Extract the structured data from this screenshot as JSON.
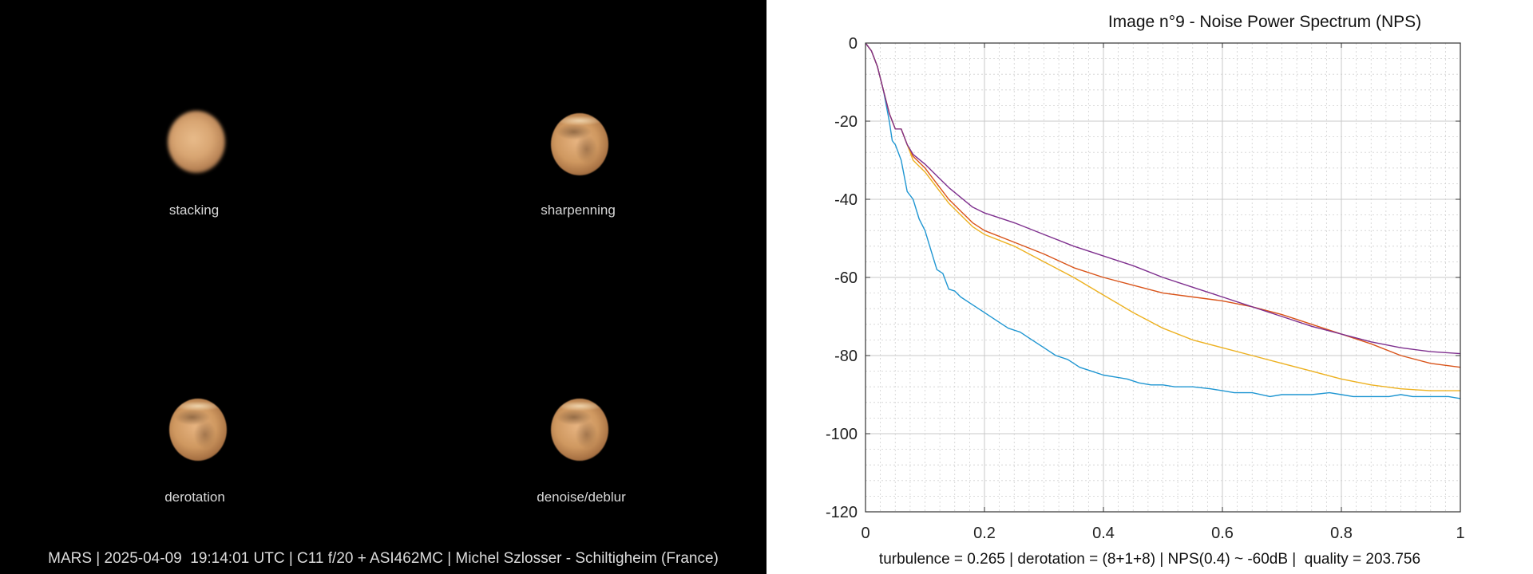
{
  "left": {
    "panels": [
      {
        "label": "stacking",
        "style": "blurry"
      },
      {
        "label": "sharpenning",
        "style": "sharp"
      },
      {
        "label": "derotation",
        "style": "sharp"
      },
      {
        "label": "denoise/deblur",
        "style": "sharp"
      }
    ],
    "footer": "MARS | 2025-04-09  19:14:01 UTC | C11 f/20 + ASI462MC | Michel Szlosser - Schiltigheim (France)"
  },
  "chart_footer": "turbulence = 0.265 | derotation = (8+1+8) | NPS(0.4) ~ -60dB |  quality = 203.756",
  "chart_data": {
    "type": "line",
    "title": "Image n°9 - Noise Power Spectrum (NPS)",
    "xlabel": "",
    "ylabel": "",
    "xlim": [
      0,
      1
    ],
    "ylim": [
      -120,
      0
    ],
    "xticks": [
      "0",
      "0.2",
      "0.4",
      "0.6",
      "0.8",
      "1"
    ],
    "yticks": [
      "0",
      "-20",
      "-40",
      "-60",
      "-80",
      "-100",
      "-120"
    ],
    "grid": true,
    "series": [
      {
        "color": "#1f96d2",
        "x": [
          0,
          0.01,
          0.02,
          0.03,
          0.04,
          0.045,
          0.05,
          0.06,
          0.07,
          0.08,
          0.09,
          0.1,
          0.11,
          0.12,
          0.13,
          0.14,
          0.15,
          0.16,
          0.18,
          0.2,
          0.22,
          0.24,
          0.26,
          0.28,
          0.3,
          0.32,
          0.34,
          0.36,
          0.38,
          0.4,
          0.42,
          0.44,
          0.46,
          0.48,
          0.5,
          0.52,
          0.55,
          0.58,
          0.6,
          0.62,
          0.65,
          0.68,
          0.7,
          0.72,
          0.75,
          0.78,
          0.8,
          0.82,
          0.85,
          0.88,
          0.9,
          0.92,
          0.95,
          0.98,
          1.0
        ],
        "y": [
          0,
          -2,
          -6,
          -12,
          -20,
          -25,
          -26,
          -30,
          -38,
          -40,
          -45,
          -48,
          -53,
          -58,
          -59,
          -63,
          -63.5,
          -65,
          -67,
          -69,
          -71,
          -73,
          -74,
          -76,
          -78,
          -80,
          -81,
          -83,
          -84,
          -85,
          -85.5,
          -86,
          -87,
          -87.5,
          -87.5,
          -88,
          -88,
          -88.5,
          -89,
          -89.5,
          -89.5,
          -90.5,
          -90,
          -90,
          -90,
          -89.5,
          -90,
          -90.5,
          -90.5,
          -90.5,
          -90,
          -90.5,
          -90.5,
          -90.5,
          -91
        ]
      },
      {
        "color": "#d95319",
        "x": [
          0,
          0.01,
          0.02,
          0.03,
          0.04,
          0.05,
          0.06,
          0.07,
          0.08,
          0.1,
          0.12,
          0.14,
          0.16,
          0.18,
          0.2,
          0.25,
          0.3,
          0.35,
          0.4,
          0.45,
          0.5,
          0.55,
          0.6,
          0.65,
          0.7,
          0.75,
          0.8,
          0.85,
          0.9,
          0.95,
          1.0
        ],
        "y": [
          0,
          -2,
          -6,
          -12,
          -18,
          -22,
          -22,
          -26,
          -29,
          -32,
          -36,
          -40,
          -43,
          -46,
          -48,
          -51,
          -54,
          -57.5,
          -60,
          -62,
          -64,
          -65,
          -66,
          -67.5,
          -69.5,
          -72,
          -74.5,
          -77,
          -80,
          -82,
          -83
        ]
      },
      {
        "color": "#edb120",
        "x": [
          0,
          0.01,
          0.02,
          0.03,
          0.04,
          0.05,
          0.06,
          0.07,
          0.08,
          0.1,
          0.12,
          0.14,
          0.16,
          0.18,
          0.2,
          0.25,
          0.3,
          0.35,
          0.4,
          0.45,
          0.5,
          0.55,
          0.6,
          0.65,
          0.7,
          0.75,
          0.8,
          0.85,
          0.9,
          0.95,
          1.0
        ],
        "y": [
          0,
          -2,
          -6,
          -12,
          -18,
          -22,
          -22,
          -26,
          -30,
          -33,
          -37,
          -41,
          -44,
          -47,
          -49,
          -52,
          -56,
          -60,
          -64.5,
          -69,
          -73,
          -76,
          -78,
          -80,
          -82,
          -84,
          -86,
          -87.5,
          -88.5,
          -89,
          -89
        ]
      },
      {
        "color": "#7e2f8e",
        "x": [
          0,
          0.01,
          0.02,
          0.03,
          0.04,
          0.05,
          0.06,
          0.07,
          0.08,
          0.1,
          0.12,
          0.14,
          0.16,
          0.18,
          0.2,
          0.25,
          0.3,
          0.35,
          0.4,
          0.45,
          0.5,
          0.55,
          0.6,
          0.65,
          0.7,
          0.75,
          0.8,
          0.85,
          0.9,
          0.95,
          1.0
        ],
        "y": [
          0,
          -2,
          -6,
          -12,
          -18,
          -22,
          -22,
          -26,
          -28.5,
          -31,
          -34,
          -37,
          -39.5,
          -42,
          -43.5,
          -46,
          -49,
          -52,
          -54.5,
          -57,
          -60,
          -62.5,
          -65,
          -67.5,
          -70,
          -72.5,
          -74.5,
          -76.5,
          -78,
          -79,
          -79.5
        ]
      }
    ]
  }
}
